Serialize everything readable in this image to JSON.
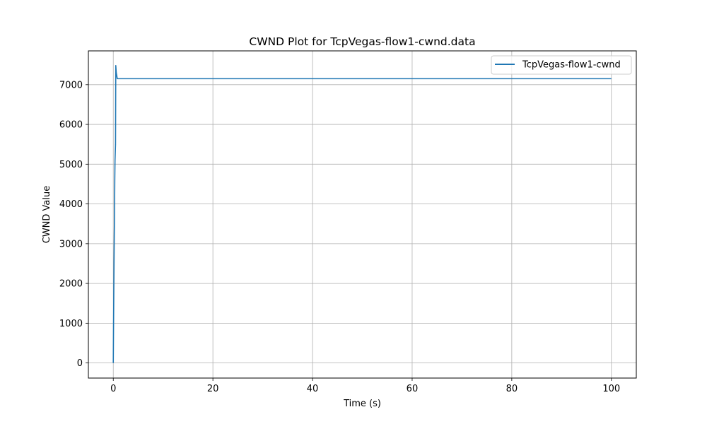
{
  "chart_data": {
    "type": "line",
    "title": "CWND Plot for TcpVegas-flow1-cwnd.data",
    "xlabel": "Time (s)",
    "ylabel": "CWND Value",
    "xlim": [
      -5,
      105
    ],
    "ylim": [
      -380,
      7850
    ],
    "xticks": [
      0,
      20,
      40,
      60,
      80,
      100
    ],
    "yticks": [
      0,
      1000,
      2000,
      3000,
      4000,
      5000,
      6000,
      7000
    ],
    "grid": true,
    "legend_position": "top-right",
    "series": [
      {
        "name": "TcpVegas-flow1-cwnd",
        "color": "#1f77b4",
        "x": [
          0,
          0.05,
          0.1,
          0.15,
          0.2,
          0.25,
          0.3,
          0.35,
          0.4,
          0.45,
          0.5,
          0.6,
          0.8,
          1,
          100
        ],
        "y": [
          0,
          900,
          1700,
          2500,
          3200,
          3700,
          4600,
          5100,
          5300,
          5500,
          7480,
          7300,
          7150,
          7150,
          7150
        ]
      }
    ]
  }
}
